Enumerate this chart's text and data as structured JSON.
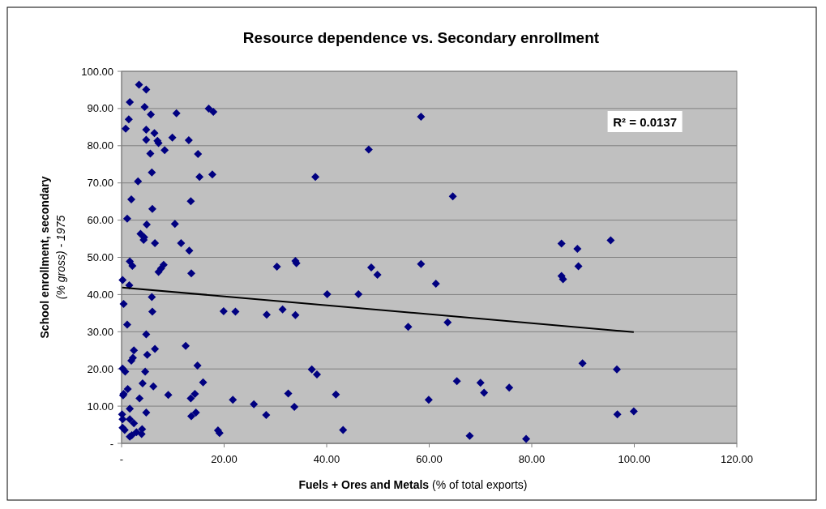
{
  "chart_data": {
    "type": "scatter",
    "title": "Resource dependence vs. Secondary enrollment",
    "xlabel": "Fuels + Ores and Metals (% of total exports)",
    "ylabel": "School enrollment, secondary\n(% gross) - 1975",
    "annotations": [
      "R² = 0.0137"
    ],
    "xlim": [
      0,
      120
    ],
    "xticks": [
      {
        "value": 0,
        "label": "-"
      },
      {
        "value": 20,
        "label": "20.00"
      },
      {
        "value": 40,
        "label": "40.00"
      },
      {
        "value": 60,
        "label": "60.00"
      },
      {
        "value": 80,
        "label": "80.00"
      },
      {
        "value": 100,
        "label": "100.00"
      },
      {
        "value": 120,
        "label": "120.00"
      }
    ],
    "ylim": [
      0,
      100
    ],
    "yticks": [
      {
        "value": 0,
        "label": "-"
      },
      {
        "value": 10,
        "label": "10.00"
      },
      {
        "value": 20,
        "label": "20.00"
      },
      {
        "value": 30,
        "label": "30.00"
      },
      {
        "value": 40,
        "label": "40.00"
      },
      {
        "value": 50,
        "label": "50.00"
      },
      {
        "value": 60,
        "label": "60.00"
      },
      {
        "value": 70,
        "label": "70.00"
      },
      {
        "value": 80,
        "label": "80.00"
      },
      {
        "value": 90,
        "label": "90.00"
      },
      {
        "value": 100,
        "label": "100.00"
      }
    ],
    "grid": "y",
    "marker": "diamond",
    "series": [
      {
        "color": "#000080",
        "x": [
          3.4,
          4.8,
          1.6,
          4.5,
          5.7,
          10.7,
          17.0,
          17.9,
          1.4,
          0.8,
          4.8,
          6.4,
          9.9,
          13.1,
          4.8,
          7.0,
          7.2,
          8.4,
          5.6,
          14.9,
          5.9,
          15.2,
          17.7,
          3.2,
          1.9,
          13.5,
          6.0,
          1.1,
          4.9,
          10.4,
          3.7,
          4.4,
          4.3,
          6.5,
          11.6,
          13.2,
          1.6,
          2.1,
          7.2,
          7.7,
          8.2,
          13.6,
          0.2,
          1.5,
          5.9,
          0.4,
          6.0,
          19.9,
          22.2,
          1.1,
          4.8,
          12.5,
          2.4,
          2.2,
          1.9,
          5.0,
          6.5,
          0.2,
          0.7,
          4.6,
          14.8,
          4.1,
          1.2,
          15.9,
          6.2,
          0.3,
          0.4,
          3.5,
          9.1,
          13.5,
          14.3,
          21.7,
          1.6,
          0.1,
          0.2,
          4.8,
          1.6,
          2.4,
          13.6,
          14.5,
          0.2,
          0.6,
          4.0,
          3.9,
          2.9,
          1.6,
          2.0,
          18.8,
          19.1,
          58.4,
          48.2,
          37.8,
          64.6,
          85.8,
          88.9,
          95.4,
          89.1,
          85.8,
          86.1,
          30.3,
          33.9,
          34.1,
          48.7,
          49.9,
          58.4,
          61.3,
          40.1,
          46.2,
          28.3,
          31.4,
          33.9,
          55.9,
          63.6,
          37.1,
          38.1,
          89.9,
          96.6,
          65.4,
          70.0,
          70.7,
          75.6,
          25.8,
          28.2,
          32.5,
          33.7,
          41.8,
          43.2,
          59.9,
          67.9,
          78.9,
          96.7,
          99.9
        ],
        "values": [
          96.4,
          95.1,
          91.7,
          90.4,
          88.4,
          88.7,
          90.0,
          89.1,
          87.1,
          84.6,
          84.3,
          83.4,
          82.2,
          81.5,
          81.6,
          81.3,
          80.7,
          78.8,
          77.9,
          77.8,
          72.8,
          71.6,
          72.3,
          70.4,
          65.6,
          65.1,
          63.0,
          60.4,
          58.8,
          59.0,
          56.3,
          55.4,
          54.7,
          53.8,
          53.8,
          51.8,
          48.9,
          47.7,
          46.1,
          47.0,
          48.0,
          45.7,
          43.9,
          42.5,
          39.3,
          37.5,
          35.4,
          35.5,
          35.4,
          31.9,
          29.3,
          26.2,
          25.0,
          23.0,
          22.2,
          23.8,
          25.4,
          20.1,
          19.3,
          19.3,
          20.9,
          16.1,
          14.6,
          16.4,
          15.3,
          12.9,
          13.3,
          12.1,
          13.0,
          12.1,
          13.3,
          11.7,
          9.3,
          7.8,
          6.5,
          8.3,
          6.5,
          5.4,
          7.3,
          8.3,
          4.2,
          3.6,
          3.8,
          2.5,
          3.0,
          1.8,
          2.2,
          3.5,
          2.8,
          87.8,
          79.0,
          71.6,
          66.4,
          53.7,
          52.3,
          54.6,
          47.6,
          45.0,
          44.1,
          47.5,
          49.0,
          48.4,
          47.3,
          45.3,
          48.2,
          42.9,
          40.1,
          40.1,
          34.6,
          36.0,
          34.5,
          31.3,
          32.5,
          19.9,
          18.5,
          21.5,
          19.9,
          16.7,
          16.3,
          13.6,
          15.0,
          10.5,
          7.6,
          13.4,
          9.8,
          13.1,
          3.6,
          11.7,
          2.0,
          1.2,
          7.8,
          8.6
        ]
      },
      {
        "type": "line",
        "color": "#000000",
        "marker": "none",
        "x": [
          0.1,
          99.9
        ],
        "values": [
          41.9,
          29.9
        ]
      }
    ]
  }
}
